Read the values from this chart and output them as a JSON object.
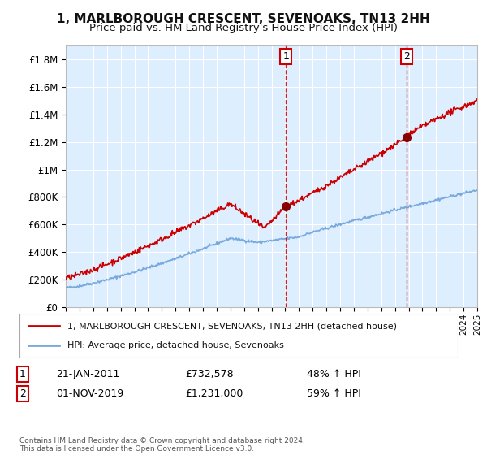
{
  "title": "1, MARLBOROUGH CRESCENT, SEVENOAKS, TN13 2HH",
  "subtitle": "Price paid vs. HM Land Registry's House Price Index (HPI)",
  "ylabel_ticks": [
    "£0",
    "£200K",
    "£400K",
    "£600K",
    "£800K",
    "£1M",
    "£1.2M",
    "£1.4M",
    "£1.6M",
    "£1.8M"
  ],
  "ylabel_values": [
    0,
    200000,
    400000,
    600000,
    800000,
    1000000,
    1200000,
    1400000,
    1600000,
    1800000
  ],
  "ylim": [
    0,
    1900000
  ],
  "x_start_year": 1995,
  "x_end_year": 2025,
  "sale1_year": 2011.05,
  "sale1_price": 732578,
  "sale1_label": "1",
  "sale1_date": "21-JAN-2011",
  "sale1_pct": "48% ↑ HPI",
  "sale2_year": 2019.83,
  "sale2_price": 1231000,
  "sale2_label": "2",
  "sale2_date": "01-NOV-2019",
  "sale2_pct": "59% ↑ HPI",
  "red_line_color": "#cc0000",
  "blue_line_color": "#7aaadd",
  "bg_plot_color": "#ddeeff",
  "grid_color": "#ffffff",
  "sale_marker_color": "#880000",
  "dashed_line_color": "#cc0000",
  "legend_red_label": "1, MARLBOROUGH CRESCENT, SEVENOAKS, TN13 2HH (detached house)",
  "legend_blue_label": "HPI: Average price, detached house, Sevenoaks",
  "footer": "Contains HM Land Registry data © Crown copyright and database right 2024.\nThis data is licensed under the Open Government Licence v3.0."
}
